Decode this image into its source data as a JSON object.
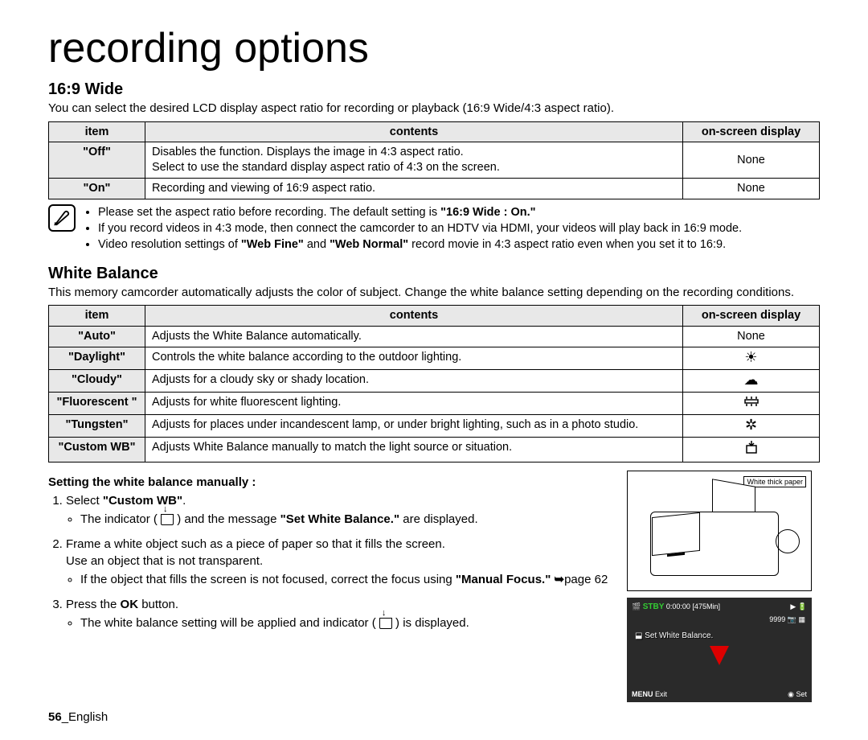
{
  "title": "recording options",
  "section1": {
    "title": "16:9 Wide",
    "desc": "You can select the desired LCD display aspect ratio for recording or playback (16:9 Wide/4:3 aspect ratio).",
    "headers": [
      "item",
      "contents",
      "on-screen display"
    ],
    "rows": [
      {
        "item": "\"Off\"",
        "contents": "Disables the function. Displays the image in 4:3 aspect ratio.\nSelect to use the standard display aspect ratio of 4:3 on the screen.",
        "osd": "None"
      },
      {
        "item": "\"On\"",
        "contents": "Recording and viewing of 16:9 aspect ratio.",
        "osd": "None"
      }
    ],
    "notes": [
      "Please set the aspect ratio before recording. The default setting is <b>\"16:9 Wide : On.\"</b>",
      "If you record videos in 4:3 mode, then connect the camcorder to an HDTV via HDMI, your videos will play back in 16:9 mode.",
      "Video resolution settings of <b>\"Web Fine\"</b> and <b>\"Web Normal\"</b> record movie in 4:3 aspect ratio even when you set it to 16:9."
    ]
  },
  "section2": {
    "title": "White Balance",
    "desc": "This memory camcorder automatically adjusts the color of subject. Change the white balance setting depending on the recording conditions.",
    "headers": [
      "item",
      "contents",
      "on-screen display"
    ],
    "rows": [
      {
        "item": "\"Auto\"",
        "contents": "Adjusts the White Balance automatically.",
        "osd_text": "None",
        "osd_icon": ""
      },
      {
        "item": "\"Daylight\"",
        "contents": "Controls the white balance according to the outdoor lighting.",
        "osd_icon": "☀"
      },
      {
        "item": "\"Cloudy\"",
        "contents": "Adjusts for a cloudy sky or shady location.",
        "osd_icon": "☁"
      },
      {
        "item": "\"Fluorescent \"",
        "contents": "Adjusts for white fluorescent lighting.",
        "osd_icon": "␣",
        "osd_svg": "fluorescent"
      },
      {
        "item": "\"Tungsten\"",
        "contents": "Adjusts for places under incandescent lamp, or under bright lighting, such as in a photo studio.",
        "osd_icon": "✲"
      },
      {
        "item": "\"Custom WB\"",
        "contents": "Adjusts White Balance manually to match the light source or situation.",
        "osd_icon": "⬓",
        "osd_svg": "custom"
      }
    ]
  },
  "manual": {
    "heading": "Setting the white balance manually :",
    "steps": [
      {
        "lead_html": "Select <b>\"Custom WB\"</b>.",
        "bullets_html": [
          "The indicator ( <span class='inline-icon'></span> ) and the message <b>\"Set White Balance.\"</b> are displayed."
        ]
      },
      {
        "lead_html": "Frame a white object such as a piece of paper so that it fills the screen.<br>Use an object that is not transparent.",
        "bullets_html": [
          "If the object that fills the screen is not focused, correct the focus using <b>\"Manual Focus.\"</b> <span class='arrow-right'>➥</span>page 62"
        ]
      },
      {
        "lead_html": "Press the <b>OK</b> button.",
        "bullets_html": [
          "The white balance setting will be applied and indicator ( <span class='inline-icon'></span> ) is displayed."
        ]
      }
    ]
  },
  "illus": {
    "paper_label": "White thick paper"
  },
  "osd": {
    "stby": "STBY",
    "time": "0:00:00 [475Min]",
    "count": "9999",
    "msg": "Set White Balance.",
    "menu": "MENU",
    "exit": "Exit",
    "set": "Set"
  },
  "footer": {
    "page": "56",
    "lang": "_English"
  }
}
